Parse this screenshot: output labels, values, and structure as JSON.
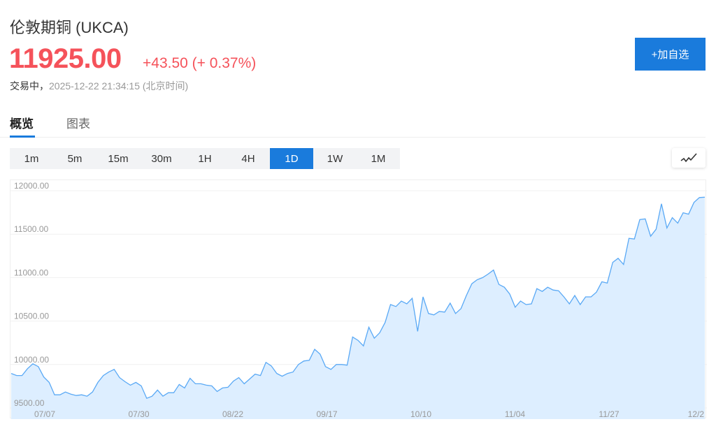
{
  "header": {
    "title": "伦敦期铜 (UKCA)",
    "price": "11925.00",
    "change": "+43.50 (+ 0.37%)",
    "status_label": "交易中，",
    "timestamp": "2025-12-22 21:34:15",
    "timezone": "(北京时间)",
    "add_watchlist": "+加自选"
  },
  "tabs": [
    {
      "label": "概览",
      "active": true
    },
    {
      "label": "图表",
      "active": false
    }
  ],
  "periods": [
    {
      "label": "1m"
    },
    {
      "label": "5m"
    },
    {
      "label": "15m"
    },
    {
      "label": "30m"
    },
    {
      "label": "1H"
    },
    {
      "label": "4H"
    },
    {
      "label": "1D",
      "active": true
    },
    {
      "label": "1W"
    },
    {
      "label": "1M"
    }
  ],
  "chart_type_icon": "line-chart-icon",
  "colors": {
    "up": "#f5525a",
    "accent": "#1a7bdc",
    "line": "#5aa9f5",
    "fill": "#ddeeff"
  },
  "chart_data": {
    "type": "area",
    "ylim": [
      9500,
      12000
    ],
    "y_ticks": [
      "12000.00",
      "11500.00",
      "11000.00",
      "10500.00",
      "10000.00",
      "9500.00"
    ],
    "x_ticks": [
      "07/07",
      "07/30",
      "08/22",
      "09/17",
      "10/10",
      "11/04",
      "11/27",
      "12/2"
    ],
    "grid": true,
    "values": [
      9897,
      9873,
      9873,
      9952,
      10008,
      9976,
      9857,
      9794,
      9651,
      9651,
      9683,
      9659,
      9643,
      9651,
      9635,
      9683,
      9794,
      9873,
      9913,
      9944,
      9849,
      9802,
      9762,
      9794,
      9754,
      9611,
      9635,
      9706,
      9635,
      9675,
      9675,
      9770,
      9730,
      9841,
      9778,
      9778,
      9762,
      9754,
      9690,
      9730,
      9738,
      9809,
      9849,
      9778,
      9833,
      9889,
      9873,
      10024,
      9984,
      9897,
      9865,
      9897,
      9913,
      10000,
      10040,
      10048,
      10175,
      10119,
      9976,
      9944,
      10000,
      10000,
      9992,
      10317,
      10278,
      10214,
      10429,
      10302,
      10365,
      10484,
      10690,
      10667,
      10730,
      10698,
      10762,
      10381,
      10778,
      10587,
      10571,
      10611,
      10603,
      10706,
      10587,
      10643,
      10794,
      10929,
      10976,
      11000,
      11040,
      11087,
      10921,
      10889,
      10810,
      10659,
      10730,
      10690,
      10698,
      10873,
      10841,
      10889,
      10857,
      10849,
      10778,
      10698,
      10794,
      10690,
      10778,
      10778,
      10833,
      10952,
      10937,
      11175,
      11222,
      11151,
      11452,
      11444,
      11667,
      11675,
      11476,
      11556,
      11849,
      11571,
      11690,
      11627,
      11746,
      11730,
      11865,
      11921,
      11925
    ]
  }
}
